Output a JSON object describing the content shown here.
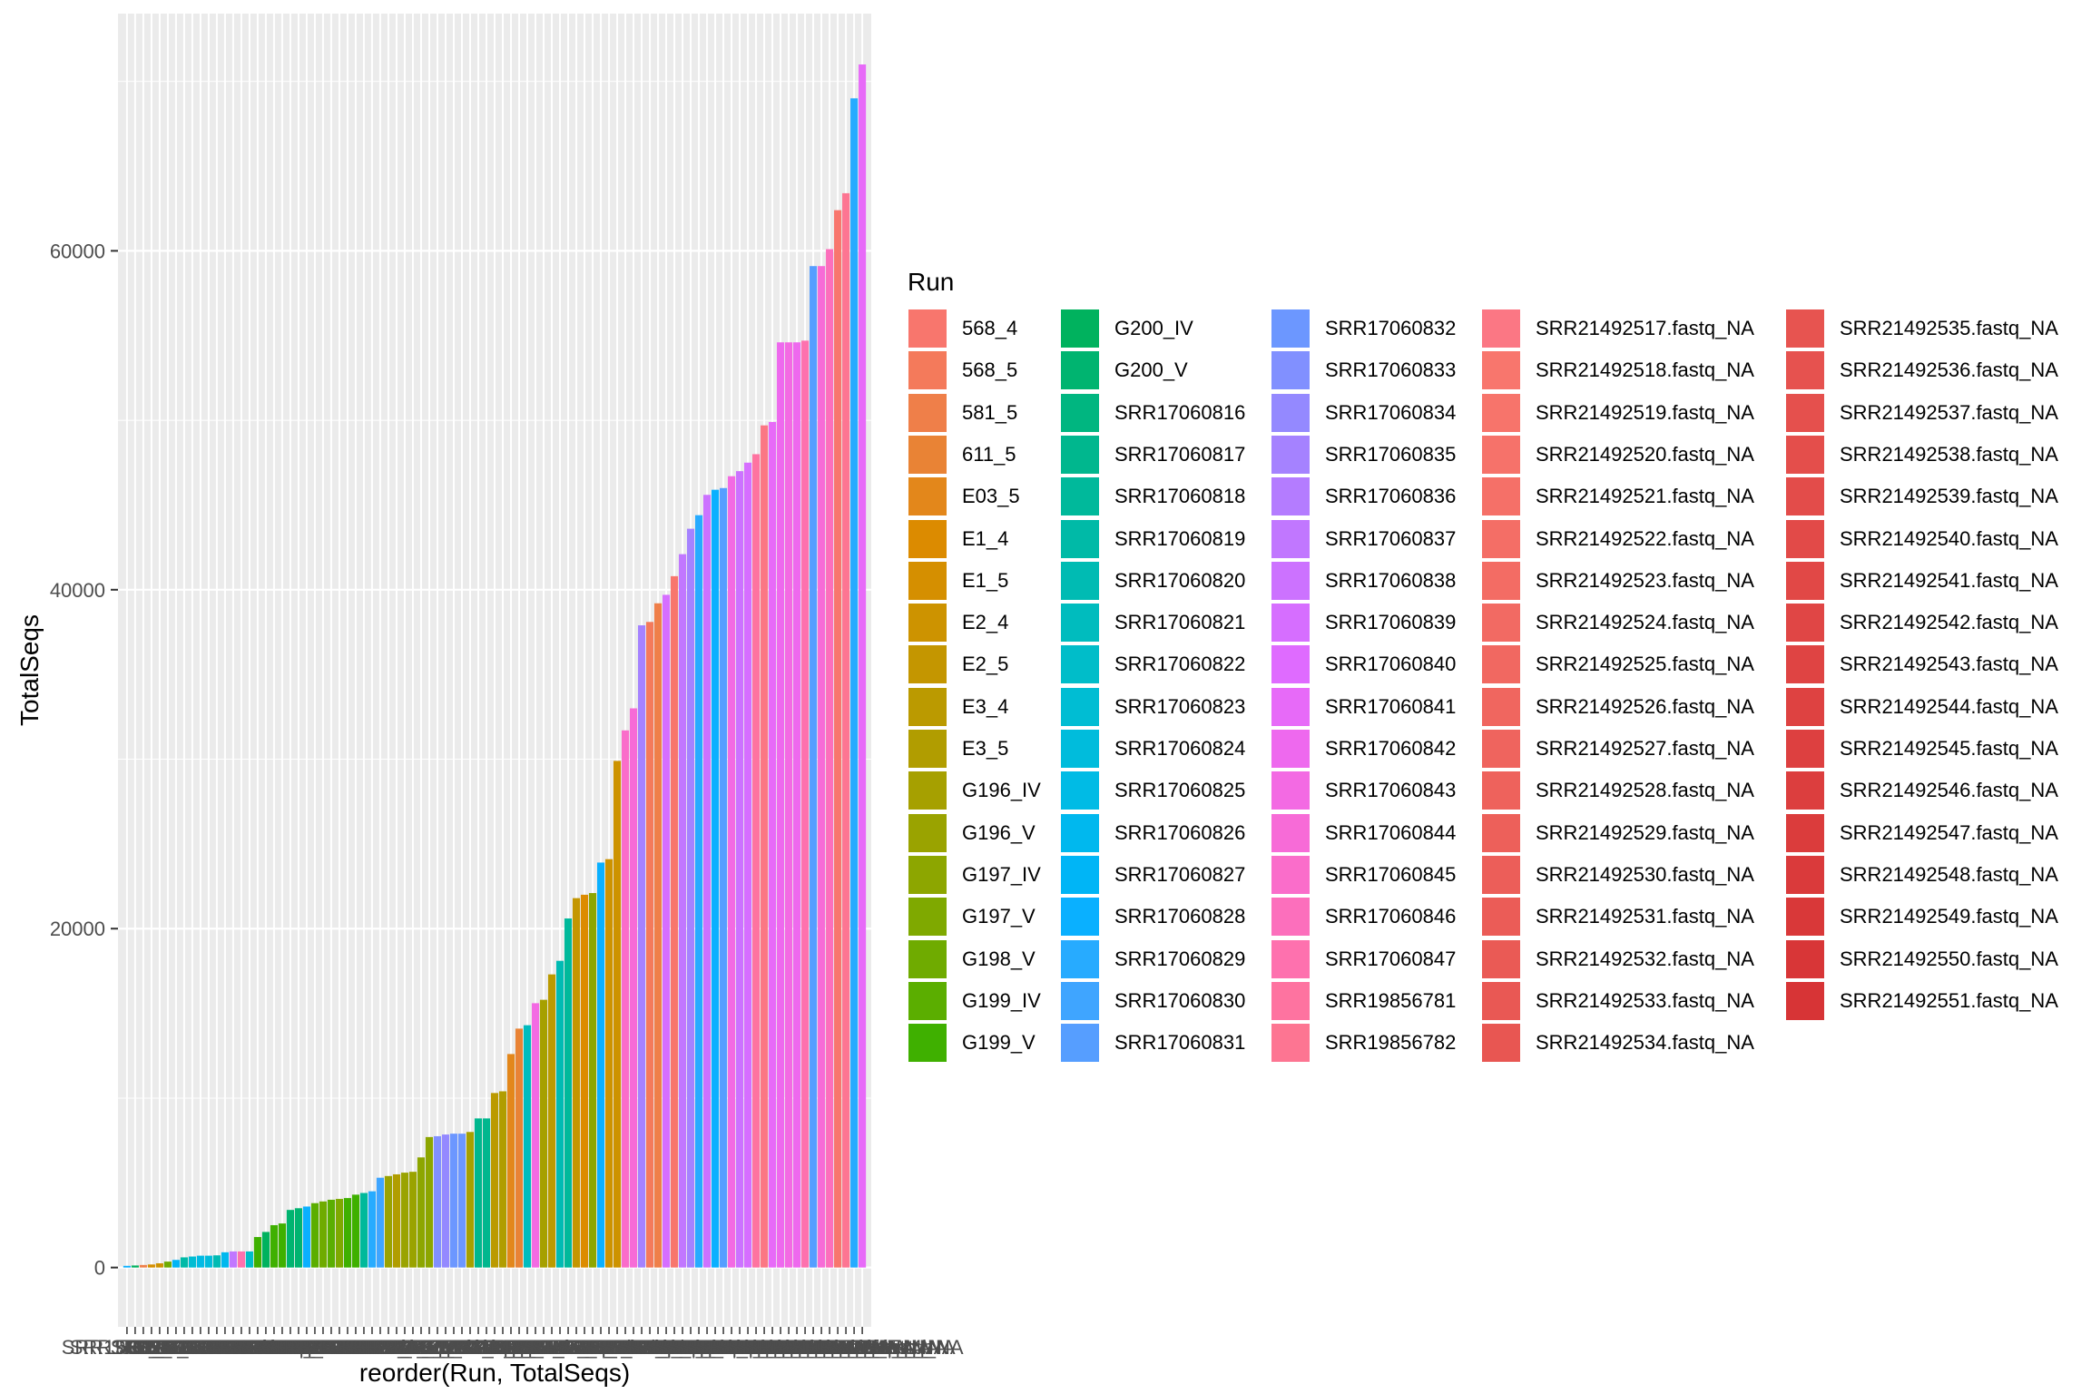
{
  "chart_data": {
    "type": "bar",
    "xlabel": "reorder(Run, TotalSeqs)",
    "ylabel": "TotalSeqs",
    "ylim": [
      -3500,
      74000
    ],
    "yticks": [
      0,
      20000,
      40000,
      60000
    ],
    "grid": true,
    "legend": {
      "title": "Run",
      "placement": "right",
      "columns": [
        [
          "568_4",
          "568_5",
          "581_5",
          "611_5",
          "E03_5",
          "E1_4",
          "E1_5",
          "E2_4",
          "E2_5",
          "E3_4",
          "E3_5",
          "G196_IV",
          "G196_V",
          "G197_IV",
          "G197_V",
          "G198_V",
          "G199_IV",
          "G199_V"
        ],
        [
          "G200_IV",
          "G200_V",
          "SRR17060816",
          "SRR17060817",
          "SRR17060818",
          "SRR17060819",
          "SRR17060820",
          "SRR17060821",
          "SRR17060822",
          "SRR17060823",
          "SRR17060824",
          "SRR17060825",
          "SRR17060826",
          "SRR17060827",
          "SRR17060828",
          "SRR17060829",
          "SRR17060830",
          "SRR17060831"
        ],
        [
          "SRR17060832",
          "SRR17060833",
          "SRR17060834",
          "SRR17060835",
          "SRR17060836",
          "SRR17060837",
          "SRR17060838",
          "SRR17060839",
          "SRR17060840",
          "SRR17060841",
          "SRR17060842",
          "SRR17060843",
          "SRR17060844",
          "SRR17060845",
          "SRR17060846",
          "SRR17060847",
          "SRR19856781",
          "SRR19856782"
        ],
        [
          "SRR21492517.fastq_NA",
          "SRR21492518.fastq_NA",
          "SRR21492519.fastq_NA",
          "SRR21492520.fastq_NA",
          "SRR21492521.fastq_NA",
          "SRR21492522.fastq_NA",
          "SRR21492523.fastq_NA",
          "SRR21492524.fastq_NA",
          "SRR21492525.fastq_NA",
          "SRR21492526.fastq_NA",
          "SRR21492527.fastq_NA",
          "SRR21492528.fastq_NA",
          "SRR21492529.fastq_NA",
          "SRR21492530.fastq_NA",
          "SRR21492531.fastq_NA",
          "SRR21492532.fastq_NA",
          "SRR21492533.fastq_NA",
          "SRR21492534.fastq_NA"
        ],
        [
          "SRR21492535.fastq_NA",
          "SRR21492536.fastq_NA",
          "SRR21492537.fastq_NA",
          "SRR21492538.fastq_NA",
          "SRR21492539.fastq_NA",
          "SRR21492540.fastq_NA",
          "SRR21492541.fastq_NA",
          "SRR21492542.fastq_NA",
          "SRR21492543.fastq_NA",
          "SRR21492544.fastq_NA",
          "SRR21492545.fastq_NA",
          "SRR21492546.fastq_NA",
          "SRR21492547.fastq_NA",
          "SRR21492548.fastq_NA",
          "SRR21492549.fastq_NA",
          "SRR21492550.fastq_NA",
          "SRR21492551.fastq_NA"
        ]
      ]
    },
    "colors": [
      "#F8766D",
      "#F47A5B",
      "#EF7F49",
      "#E98335",
      "#E3871B",
      "#DC8B00",
      "#D58F00",
      "#CD9300",
      "#C49600",
      "#BB9A00",
      "#B19D00",
      "#A6A000",
      "#9AA300",
      "#8DA600",
      "#7FA900",
      "#6FAB00",
      "#5BAE00",
      "#3FB000",
      "#00B25E",
      "#00B470",
      "#00B680",
      "#00B78E",
      "#00B99B",
      "#00BAA7",
      "#00BBB3",
      "#00BCBE",
      "#00BDC9",
      "#00BDD3",
      "#00BCDC",
      "#00BBE5",
      "#00B8EE",
      "#00B5F6",
      "#0AB0FF",
      "#27ABFF",
      "#3FA5FF",
      "#569EFF",
      "#6C97FF",
      "#8190FF",
      "#9489FF",
      "#A582FF",
      "#B47CFF",
      "#C177FF",
      "#CC72FF",
      "#D66EFF",
      "#DF6BFF",
      "#E76AF8",
      "#EE69EE",
      "#F36AE3",
      "#F76BD7",
      "#FA6DCA",
      "#FC6FBC",
      "#FE71AE",
      "#FE73A0",
      "#FD7592",
      "#FB7784",
      "#F8766D",
      "#F7746B",
      "#F6726A",
      "#F57068",
      "#F46E66",
      "#F36C64",
      "#F26A63",
      "#F16861",
      "#F0665F",
      "#EF645E",
      "#EE625C",
      "#ED605A",
      "#EC5E59",
      "#EB5C57",
      "#EA5A55",
      "#E95854",
      "#E85652",
      "#E75450",
      "#E6524F",
      "#E5504D",
      "#E44E4B",
      "#E34C4A",
      "#E24A48",
      "#E14846",
      "#E04645",
      "#DF4443",
      "#DE4241",
      "#DD4040",
      "#DC3E3E",
      "#DB3C3C",
      "#DA3A3B",
      "#D93839",
      "#D83637",
      "#D73436",
      "#D63234"
    ],
    "bars": [
      {
        "run": "SRR19856781",
        "value": 100,
        "color": "#0AB0FF"
      },
      {
        "run": "SRR17060832",
        "value": 120,
        "color": "#00B25E"
      },
      {
        "run": "581_5",
        "value": 150,
        "color": "#EF7F49"
      },
      {
        "run": "E1_5",
        "value": 180,
        "color": "#D58F00"
      },
      {
        "run": "E2_4",
        "value": 250,
        "color": "#CD9300"
      },
      {
        "run": "G200_IV",
        "value": 350,
        "color": "#6FAB00"
      },
      {
        "run": "SRR17060847",
        "value": 450,
        "color": "#00B5F6"
      },
      {
        "run": "SRR17060838",
        "value": 600,
        "color": "#00BAA7"
      },
      {
        "run": "SRR17060843",
        "value": 650,
        "color": "#00BDD3"
      },
      {
        "run": "SRR17060845",
        "value": 700,
        "color": "#00BBE5"
      },
      {
        "run": "SRR17060844",
        "value": 700,
        "color": "#00BCDC"
      },
      {
        "run": "SRR17060839",
        "value": 720,
        "color": "#00BBB3"
      },
      {
        "run": "SRR17060846",
        "value": 900,
        "color": "#00B8EE"
      },
      {
        "run": "SRR21492528.fastq_NA",
        "value": 950,
        "color": "#C177FF"
      },
      {
        "run": "SRR21492544.fastq_NA",
        "value": 950,
        "color": "#FE71AE"
      },
      {
        "run": "SRR17060842",
        "value": 950,
        "color": "#00BDC9"
      },
      {
        "run": "SRR17060826",
        "value": 1800,
        "color": "#3FB000"
      },
      {
        "run": "SRR17060827",
        "value": 2100,
        "color": "#00B25E"
      },
      {
        "run": "SRR17060825",
        "value": 2500,
        "color": "#3FB000"
      },
      {
        "run": "SRR17060824",
        "value": 2600,
        "color": "#3FB000"
      },
      {
        "run": "SRR17060830",
        "value": 3400,
        "color": "#00B470"
      },
      {
        "run": "SRR17060833",
        "value": 3500,
        "color": "#00B470"
      },
      {
        "run": "SRR19856782",
        "value": 3600,
        "color": "#0AB0FF"
      },
      {
        "run": "SRR17060820",
        "value": 3800,
        "color": "#5BAE00"
      },
      {
        "run": "SRR17060819",
        "value": 3900,
        "color": "#6FAB00"
      },
      {
        "run": "SRR17060821",
        "value": 4000,
        "color": "#5BAE00"
      },
      {
        "run": "SRR17060818",
        "value": 4050,
        "color": "#7FA900"
      },
      {
        "run": "SRR17060822",
        "value": 4100,
        "color": "#3FB000"
      },
      {
        "run": "SRR17060823",
        "value": 4300,
        "color": "#3FB000"
      },
      {
        "run": "SRR17060836",
        "value": 4400,
        "color": "#00B99B"
      },
      {
        "run": "SRR21492519.fastq_NA",
        "value": 4500,
        "color": "#27ABFF"
      },
      {
        "run": "SRR21492520.fastq_NA",
        "value": 5300,
        "color": "#3FA5FF"
      },
      {
        "run": "G199_V",
        "value": 5400,
        "color": "#9AA300"
      },
      {
        "run": "E3_5",
        "value": 5500,
        "color": "#B19D00"
      },
      {
        "run": "G198_V",
        "value": 5600,
        "color": "#9AA300"
      },
      {
        "run": "G199_IV",
        "value": 5650,
        "color": "#9AA300"
      },
      {
        "run": "G200_V",
        "value": 6500,
        "color": "#8DA600"
      },
      {
        "run": "SRR17060817",
        "value": 7700,
        "color": "#8DA600"
      },
      {
        "run": "SRR21492525.fastq_NA",
        "value": 7750,
        "color": "#8190FF"
      },
      {
        "run": "SRR21492526.fastq_NA",
        "value": 7850,
        "color": "#9489FF"
      },
      {
        "run": "SRR21492524.fastq_NA",
        "value": 7900,
        "color": "#6C97FF"
      },
      {
        "run": "SRR21492523.fastq_NA",
        "value": 7900,
        "color": "#6C97FF"
      },
      {
        "run": "G197_V",
        "value": 8000,
        "color": "#A6A000"
      },
      {
        "run": "SRR17060834",
        "value": 8800,
        "color": "#00B78E"
      },
      {
        "run": "SRR17060835",
        "value": 8800,
        "color": "#00B78E"
      },
      {
        "run": "G196_IV",
        "value": 10300,
        "color": "#BB9A00"
      },
      {
        "run": "G196_V",
        "value": 10400,
        "color": "#B19D00"
      },
      {
        "run": "E03_5",
        "value": 12600,
        "color": "#E3871B"
      },
      {
        "run": "611_5",
        "value": 14100,
        "color": "#E98335"
      },
      {
        "run": "SRR17060841",
        "value": 14300,
        "color": "#00BCBE"
      },
      {
        "run": "SRR21492538.fastq_NA",
        "value": 15600,
        "color": "#F36AE3"
      },
      {
        "run": "G197_IV",
        "value": 15800,
        "color": "#A6A000"
      },
      {
        "run": "E3_4",
        "value": 17300,
        "color": "#BB9A00"
      },
      {
        "run": "SRR17060840",
        "value": 18100,
        "color": "#00BBB3"
      },
      {
        "run": "SRR17060837",
        "value": 20600,
        "color": "#00B99B"
      },
      {
        "run": "E2_5",
        "value": 21800,
        "color": "#C49600"
      },
      {
        "run": "E1_4",
        "value": 22000,
        "color": "#DC8B00"
      },
      {
        "run": "SRR17060816",
        "value": 22100,
        "color": "#8DA600"
      },
      {
        "run": "SRR21492517.fastq_NA",
        "value": 23900,
        "color": "#0AB0FF"
      },
      {
        "run": "E2_4b",
        "value": 24100,
        "color": "#CD9300"
      },
      {
        "run": "G200_IVb",
        "value": 29900,
        "color": "#CD9300"
      },
      {
        "run": "SRR21492542.fastq_NA",
        "value": 31700,
        "color": "#FA6DCA"
      },
      {
        "run": "SRR21492541.fastq_NA",
        "value": 33000,
        "color": "#F76BD7"
      },
      {
        "run": "SRR21492527.fastq_NA",
        "value": 37900,
        "color": "#A582FF"
      },
      {
        "run": "568_5",
        "value": 38100,
        "color": "#F47A5B"
      },
      {
        "run": "581_5b",
        "value": 39200,
        "color": "#EF7F49"
      },
      {
        "run": "SRR21492533.fastq_NA",
        "value": 39700,
        "color": "#D66EFF"
      },
      {
        "run": "568_4",
        "value": 40800,
        "color": "#F8766D"
      },
      {
        "run": "SRR21492529.fastq_NA",
        "value": 42100,
        "color": "#C177FF"
      },
      {
        "run": "SRR21492530.fastq_NA",
        "value": 43600,
        "color": "#A582FF"
      },
      {
        "run": "SRR21492521.fastq_NA",
        "value": 44400,
        "color": "#27ABFF"
      },
      {
        "run": "SRR21492532.fastq_NA",
        "value": 45600,
        "color": "#CC72FF"
      },
      {
        "run": "SRR21492518.fastq_NA",
        "value": 45900,
        "color": "#0AB0FF"
      },
      {
        "run": "SRR21492522.fastq_NA",
        "value": 46000,
        "color": "#569EFF"
      },
      {
        "run": "SRR21492540.fastq_NA",
        "value": 46700,
        "color": "#F36AE3"
      },
      {
        "run": "SRR21492531.fastq_NA",
        "value": 47000,
        "color": "#CC72FF"
      },
      {
        "run": "SRR21492534.fastq_NA",
        "value": 47500,
        "color": "#D66EFF"
      },
      {
        "run": "SRR21492546.fastq_NA",
        "value": 48000,
        "color": "#FE73A0"
      },
      {
        "run": "SRR21492549.fastq_NA",
        "value": 49700,
        "color": "#FB7784"
      },
      {
        "run": "SRR21492535.fastq_NA",
        "value": 49900,
        "color": "#E76AF8"
      },
      {
        "run": "SRR21492537.fastq_NA",
        "value": 54600,
        "color": "#EE69EE"
      },
      {
        "run": "SRR21492539.fastq_NA",
        "value": 54600,
        "color": "#F36AE3"
      },
      {
        "run": "SRR21492536.fastq_NA",
        "value": 54600,
        "color": "#EE69EE"
      },
      {
        "run": "SRR21492545.fastq_NA",
        "value": 54700,
        "color": "#FE71AE"
      },
      {
        "run": "SRR17060828b",
        "value": 59100,
        "color": "#569EFF"
      },
      {
        "run": "SRR21492543.fastq_NA",
        "value": 59100,
        "color": "#F76BD7"
      },
      {
        "run": "SRR21492547.fastq_NA",
        "value": 60100,
        "color": "#FC6FBC"
      },
      {
        "run": "SRR21492550.fastq_NA",
        "value": 62400,
        "color": "#F8766D"
      },
      {
        "run": "SRR21492548.fastq_NA",
        "value": 63400,
        "color": "#FD7592"
      },
      {
        "run": "SRR21492551.fastq_NA",
        "value": 69000,
        "color": "#27ABFF"
      },
      {
        "run": "SRR21492544b",
        "value": 71000,
        "color": "#E76AF8"
      }
    ]
  }
}
